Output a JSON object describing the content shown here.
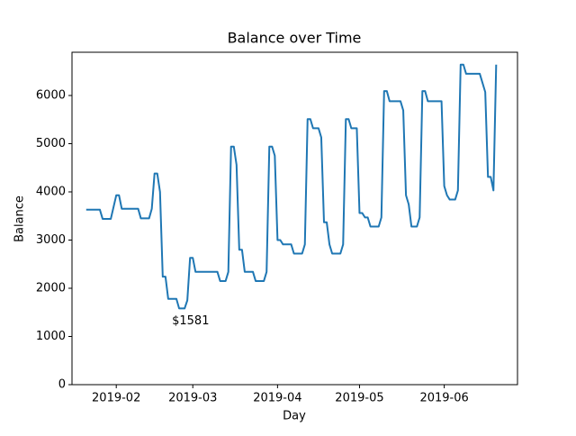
{
  "chart_data": {
    "type": "line",
    "title": "Balance over Time",
    "x_label": "Day",
    "y_label": "Balance",
    "x": [
      21,
      26,
      27,
      30,
      32,
      33,
      34,
      40,
      41,
      44,
      45,
      46,
      47,
      48,
      49,
      50,
      51,
      54,
      55,
      57,
      58,
      59,
      60,
      61,
      69,
      70,
      72,
      73,
      74,
      75,
      76,
      77,
      78,
      79,
      82,
      83,
      86,
      87,
      88,
      89,
      90,
      91,
      92,
      93,
      96,
      97,
      100,
      101,
      102,
      103,
      104,
      106,
      107,
      108,
      109,
      110,
      111,
      114,
      115,
      116,
      117,
      118,
      120,
      121,
      122,
      123,
      124,
      125,
      128,
      129,
      130,
      131,
      132,
      136,
      137,
      138,
      139,
      140,
      142,
      143,
      144,
      145,
      146,
      151,
      152,
      153,
      154,
      156,
      157,
      158,
      159,
      160,
      165,
      166,
      167,
      168,
      169,
      170,
      171
    ],
    "series": [
      {
        "name": "Balance",
        "color": "#1f77b4",
        "values": [
          3630,
          3630,
          3440,
          3440,
          3930,
          3930,
          3650,
          3650,
          3450,
          3450,
          3650,
          4380,
          4380,
          4000,
          2240,
          2240,
          1780,
          1780,
          1581,
          1581,
          1750,
          2630,
          2630,
          2340,
          2340,
          2150,
          2150,
          2340,
          4940,
          4940,
          4560,
          2800,
          2800,
          2340,
          2340,
          2150,
          2150,
          2340,
          4940,
          4940,
          4750,
          3000,
          3000,
          2910,
          2910,
          2720,
          2720,
          2910,
          5510,
          5510,
          5320,
          5320,
          5130,
          3370,
          3370,
          2910,
          2720,
          2720,
          2910,
          5510,
          5510,
          5320,
          5320,
          3560,
          3560,
          3470,
          3470,
          3280,
          3280,
          3470,
          6090,
          6090,
          5880,
          5880,
          5690,
          3930,
          3740,
          3280,
          3280,
          3470,
          6090,
          6090,
          5880,
          5880,
          4120,
          3930,
          3840,
          3840,
          4030,
          6640,
          6640,
          6450,
          6450,
          6260,
          6070,
          4310,
          4310,
          4030,
          6640
        ]
      }
    ],
    "annotations": [
      {
        "text": "$1581",
        "x": 57,
        "y": 1581
      }
    ],
    "xlim": [
      15.8,
      178.8
    ],
    "ylim": [
      0,
      6897
    ],
    "xticks": [
      {
        "value": 32,
        "label": "2019-02"
      },
      {
        "value": 60,
        "label": "2019-03"
      },
      {
        "value": 91,
        "label": "2019-04"
      },
      {
        "value": 121,
        "label": "2019-05"
      },
      {
        "value": 152,
        "label": "2019-06"
      }
    ],
    "yticks": [
      0,
      1000,
      2000,
      3000,
      4000,
      5000,
      6000
    ],
    "grid": false
  }
}
